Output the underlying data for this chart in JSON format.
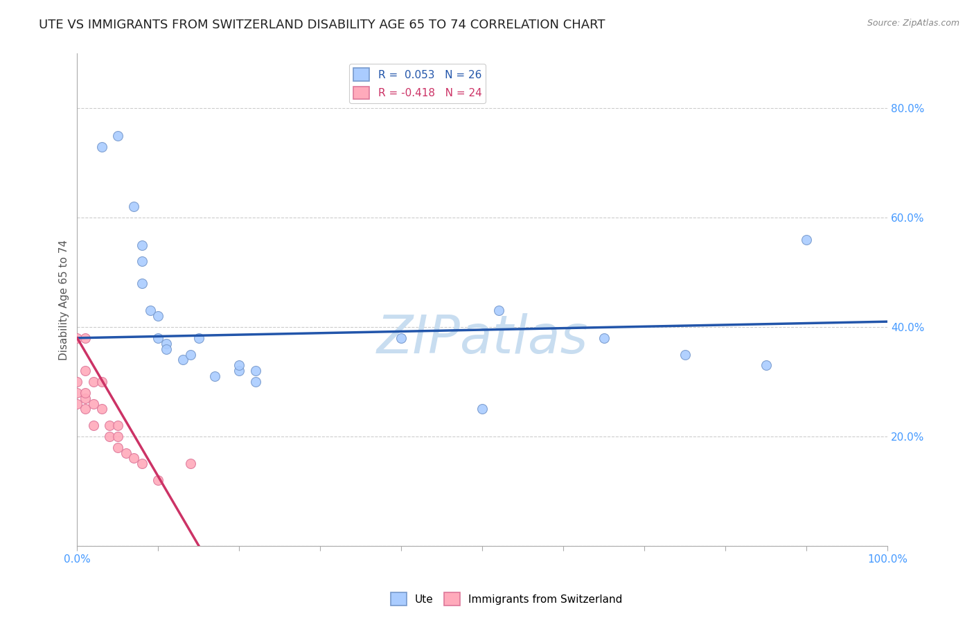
{
  "title": "UTE VS IMMIGRANTS FROM SWITZERLAND DISABILITY AGE 65 TO 74 CORRELATION CHART",
  "source_text": "Source: ZipAtlas.com",
  "ylabel": "Disability Age 65 to 74",
  "xlim": [
    0,
    100
  ],
  "ylim": [
    0,
    90
  ],
  "ytick_values": [
    0,
    20,
    40,
    60,
    80
  ],
  "xtick_values": [
    0,
    10,
    20,
    30,
    40,
    50,
    60,
    70,
    80,
    90,
    100
  ],
  "blue_R": "0.053",
  "blue_N": "26",
  "pink_R": "-0.418",
  "pink_N": "24",
  "blue_scatter_x": [
    3,
    5,
    7,
    8,
    8,
    8,
    9,
    10,
    10,
    11,
    11,
    13,
    14,
    15,
    17,
    20,
    20,
    22,
    22,
    40,
    50,
    52,
    65,
    75,
    85,
    90
  ],
  "blue_scatter_y": [
    73,
    75,
    62,
    55,
    52,
    48,
    43,
    38,
    42,
    37,
    36,
    34,
    35,
    38,
    31,
    32,
    33,
    30,
    32,
    38,
    25,
    43,
    38,
    35,
    33,
    56
  ],
  "pink_scatter_x": [
    0,
    0,
    0,
    0,
    1,
    1,
    1,
    1,
    1,
    2,
    2,
    2,
    3,
    3,
    4,
    4,
    5,
    5,
    5,
    6,
    7,
    8,
    10,
    14
  ],
  "pink_scatter_y": [
    26,
    28,
    30,
    38,
    25,
    27,
    28,
    32,
    38,
    22,
    26,
    30,
    25,
    30,
    20,
    22,
    18,
    20,
    22,
    17,
    16,
    15,
    12,
    15
  ],
  "blue_line_x": [
    0,
    100
  ],
  "blue_line_y": [
    38,
    41
  ],
  "pink_line_x": [
    0,
    15
  ],
  "pink_line_y": [
    38,
    0
  ],
  "title_color": "#222222",
  "title_fontsize": 13,
  "axis_label_color": "#555555",
  "tick_color": "#4499ff",
  "blue_scatter_color": "#aaccff",
  "blue_scatter_edge": "#7799cc",
  "pink_scatter_color": "#ffaabb",
  "pink_scatter_edge": "#dd7799",
  "blue_line_color": "#2255aa",
  "pink_line_color": "#cc3366",
  "grid_color": "#cccccc",
  "legend_blue_text": "R =  0.053   N = 26",
  "legend_pink_text": "R = -0.418   N = 24",
  "legend_fontsize": 11,
  "watermark_text": "ZIPatlas",
  "watermark_color": "#c8ddf0",
  "source_color": "#888888",
  "source_fontsize": 9,
  "scatter_size": 100
}
